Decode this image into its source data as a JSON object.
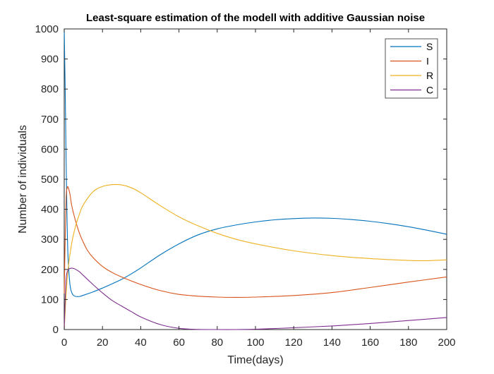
{
  "chart_data": {
    "type": "line",
    "title": "Least-square estimation of the modell with additive Gaussian noise",
    "xlabel": "Time(days)",
    "ylabel": "Number of individuals",
    "xlim": [
      0,
      200
    ],
    "ylim": [
      0,
      1000
    ],
    "xticks": [
      "0",
      "20",
      "40",
      "60",
      "80",
      "100",
      "120",
      "140",
      "160",
      "180",
      "200"
    ],
    "yticks": [
      "0",
      "100",
      "200",
      "300",
      "400",
      "500",
      "600",
      "700",
      "800",
      "900",
      "1000"
    ],
    "grid": false,
    "legend_position": "top-right",
    "series": [
      {
        "name": "S",
        "color": "#0072BD",
        "x": [
          0,
          0.5,
          1,
          1.5,
          2,
          3,
          4,
          5,
          6,
          8,
          10,
          15,
          20,
          25,
          30,
          35,
          40,
          50,
          60,
          70,
          80,
          90,
          100,
          110,
          120,
          130,
          140,
          150,
          160,
          170,
          180,
          190,
          200
        ],
        "y": [
          1000,
          800,
          560,
          360,
          240,
          150,
          122,
          113,
          110,
          110,
          114,
          125,
          138,
          152,
          167,
          185,
          205,
          248,
          285,
          315,
          335,
          348,
          358,
          365,
          369,
          371,
          370,
          366,
          360,
          352,
          342,
          330,
          317
        ]
      },
      {
        "name": "I",
        "color": "#D95319",
        "x": [
          0,
          0.5,
          1,
          1.5,
          2,
          3,
          4,
          6,
          8,
          10,
          12,
          15,
          20,
          25,
          30,
          40,
          50,
          60,
          70,
          80,
          90,
          100,
          120,
          140,
          160,
          180,
          200
        ],
        "y": [
          120,
          300,
          440,
          470,
          474,
          450,
          410,
          360,
          320,
          290,
          265,
          240,
          210,
          190,
          175,
          150,
          130,
          117,
          111,
          108,
          107,
          108,
          113,
          123,
          140,
          158,
          175
        ]
      },
      {
        "name": "R",
        "color": "#EDB120",
        "x": [
          0,
          0.5,
          1,
          2,
          4,
          6,
          8,
          10,
          15,
          20,
          25,
          30,
          35,
          40,
          50,
          60,
          70,
          80,
          90,
          100,
          120,
          140,
          160,
          180,
          190,
          200
        ],
        "y": [
          0,
          60,
          120,
          200,
          290,
          345,
          385,
          415,
          458,
          476,
          482,
          481,
          472,
          455,
          413,
          375,
          345,
          320,
          300,
          285,
          262,
          246,
          236,
          230,
          229,
          232
        ]
      },
      {
        "name": "C",
        "color": "#7E2F8E",
        "x": [
          0,
          0.5,
          1,
          1.5,
          2,
          3,
          4,
          5,
          6,
          8,
          10,
          15,
          20,
          25,
          30,
          35,
          40,
          50,
          60,
          70,
          80,
          90,
          100,
          120,
          140,
          160,
          180,
          200
        ],
        "y": [
          0,
          100,
          170,
          190,
          198,
          203,
          204,
          203,
          200,
          192,
          180,
          150,
          122,
          97,
          78,
          60,
          42,
          17,
          4,
          0.5,
          0,
          0,
          1,
          6,
          12,
          20,
          30,
          40
        ]
      }
    ]
  }
}
